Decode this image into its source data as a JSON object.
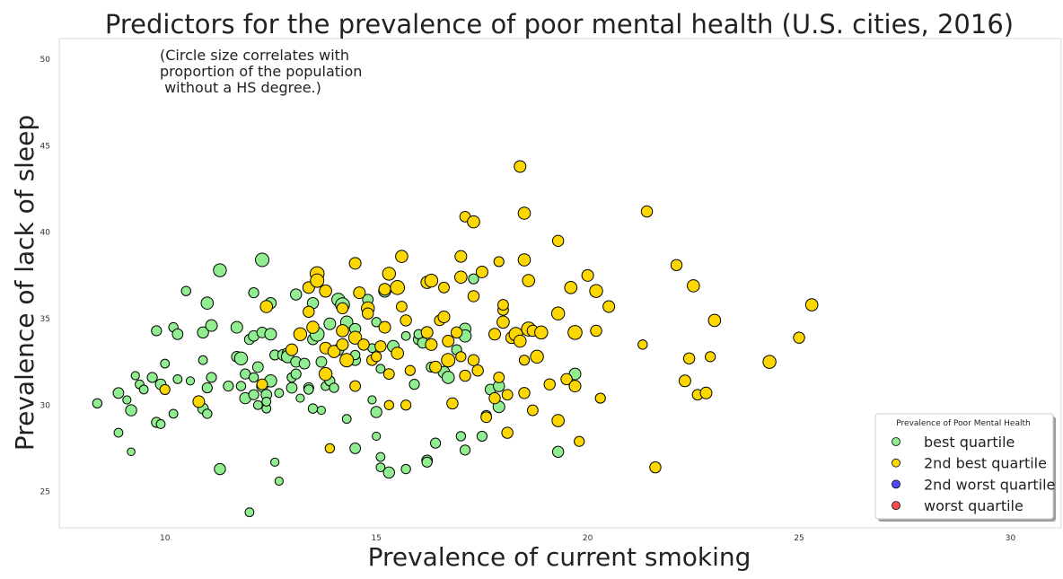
{
  "chart_data": {
    "type": "scatter",
    "title": "Predictors for the prevalence of poor mental health (U.S. cities, 2016)",
    "xlabel": "Prevalence of current smoking",
    "ylabel": "Prevalence of lack of sleep",
    "annotation": [
      "(Circle size correlates with",
      "proportion of the population",
      " without a HS degree.)"
    ],
    "xlim": [
      7.5,
      31.2
    ],
    "ylim": [
      22.9,
      51.2
    ],
    "xticks": [
      10,
      15,
      20,
      25,
      30
    ],
    "yticks": [
      25,
      30,
      35,
      40,
      45,
      50
    ],
    "grid": false,
    "legend": {
      "title": "Prevalence of Poor Mental Health",
      "position": "lower-right",
      "entries": [
        {
          "label": "best quartile",
          "color": "#90ee90"
        },
        {
          "label": "2nd best quartile",
          "color": "#ffd700"
        },
        {
          "label": "2nd worst quartile",
          "color": "#4b4bff"
        },
        {
          "label": "worst quartile",
          "color": "#ff4f4f"
        }
      ]
    },
    "series": [
      {
        "name": "best quartile",
        "color": "#90ee90",
        "points": [
          [
            8.4,
            30.1,
            7
          ],
          [
            8.9,
            30.7,
            9
          ],
          [
            8.9,
            28.4,
            6
          ],
          [
            9.2,
            29.7,
            10
          ],
          [
            9.2,
            27.3,
            4
          ],
          [
            9.3,
            31.7,
            5
          ],
          [
            9.4,
            31.2,
            6
          ],
          [
            9.5,
            30.9,
            6
          ],
          [
            9.7,
            31.6,
            8
          ],
          [
            9.8,
            29.0,
            8
          ],
          [
            9.8,
            34.3,
            8
          ],
          [
            9.9,
            28.9,
            6
          ],
          [
            9.9,
            31.2,
            9
          ],
          [
            10.0,
            32.4,
            6
          ],
          [
            10.2,
            29.5,
            6
          ],
          [
            10.2,
            34.5,
            7
          ],
          [
            10.3,
            34.1,
            9
          ],
          [
            10.3,
            31.5,
            6
          ],
          [
            10.5,
            36.6,
            7
          ],
          [
            10.6,
            31.4,
            5
          ],
          [
            10.8,
            30.2,
            7
          ],
          [
            10.9,
            29.8,
            9
          ],
          [
            10.9,
            32.6,
            6
          ],
          [
            10.9,
            34.2,
            10
          ],
          [
            11.0,
            29.5,
            7
          ],
          [
            11.0,
            35.9,
            12
          ],
          [
            11.0,
            31.0,
            8
          ],
          [
            11.1,
            34.6,
            11
          ],
          [
            11.1,
            31.6,
            8
          ],
          [
            11.3,
            37.8,
            13
          ],
          [
            11.3,
            26.3,
            10
          ],
          [
            11.5,
            31.1,
            8
          ],
          [
            11.7,
            34.5,
            11
          ],
          [
            11.7,
            32.8,
            9
          ],
          [
            11.8,
            32.7,
            13
          ],
          [
            11.8,
            31.1,
            7
          ],
          [
            11.9,
            30.4,
            10
          ],
          [
            11.9,
            31.8,
            8
          ],
          [
            12.0,
            23.8,
            6
          ],
          [
            12.0,
            33.8,
            8
          ],
          [
            12.1,
            34.0,
            9
          ],
          [
            12.1,
            36.5,
            8
          ],
          [
            12.1,
            30.6,
            8
          ],
          [
            12.1,
            31.6,
            7
          ],
          [
            12.2,
            30.0,
            6
          ],
          [
            12.2,
            32.2,
            9
          ],
          [
            12.3,
            31.1,
            10
          ],
          [
            12.3,
            38.4,
            14
          ],
          [
            12.3,
            34.2,
            9
          ],
          [
            12.4,
            29.8,
            6
          ],
          [
            12.4,
            30.6,
            9
          ],
          [
            12.5,
            34.1,
            11
          ],
          [
            12.5,
            35.9,
            10
          ],
          [
            12.5,
            31.4,
            12
          ],
          [
            12.6,
            32.9,
            8
          ],
          [
            12.6,
            26.7,
            5
          ],
          [
            12.7,
            30.7,
            6
          ],
          [
            12.7,
            25.6,
            5
          ],
          [
            12.8,
            32.9,
            10
          ],
          [
            12.9,
            33.0,
            9
          ],
          [
            12.9,
            32.8,
            12
          ],
          [
            13.0,
            31.0,
            9
          ],
          [
            13.0,
            31.6,
            7
          ],
          [
            13.1,
            36.4,
            10
          ],
          [
            13.1,
            32.5,
            9
          ],
          [
            13.1,
            31.8,
            8
          ],
          [
            13.3,
            32.4,
            9
          ],
          [
            13.4,
            31.0,
            8
          ],
          [
            13.4,
            30.9,
            7
          ],
          [
            13.5,
            35.9,
            10
          ],
          [
            13.5,
            33.8,
            9
          ],
          [
            13.5,
            29.8,
            7
          ],
          [
            13.6,
            34.1,
            15
          ],
          [
            13.7,
            29.7,
            5
          ],
          [
            13.7,
            32.5,
            9
          ],
          [
            13.8,
            31.1,
            6
          ],
          [
            13.9,
            31.4,
            8
          ],
          [
            13.9,
            34.7,
            11
          ],
          [
            14.0,
            31.0,
            7
          ],
          [
            14.1,
            36.1,
            13
          ],
          [
            14.1,
            33.2,
            10
          ],
          [
            14.2,
            35.8,
            15
          ],
          [
            14.3,
            34.8,
            12
          ],
          [
            14.3,
            29.2,
            6
          ],
          [
            14.5,
            34.4,
            10
          ],
          [
            14.5,
            32.6,
            9
          ],
          [
            14.5,
            27.5,
            9
          ],
          [
            14.8,
            36.1,
            9
          ],
          [
            14.9,
            30.3,
            5
          ],
          [
            15.0,
            28.2,
            5
          ],
          [
            15.0,
            34.8,
            7
          ],
          [
            15.0,
            29.6,
            10
          ],
          [
            15.1,
            26.4,
            6
          ],
          [
            15.1,
            27.0,
            6
          ],
          [
            15.1,
            32.1,
            6
          ],
          [
            15.2,
            36.6,
            12
          ],
          [
            15.3,
            26.1,
            10
          ],
          [
            15.4,
            33.4,
            11
          ],
          [
            15.7,
            26.3,
            7
          ],
          [
            15.9,
            31.2,
            8
          ],
          [
            16.0,
            33.8,
            9
          ],
          [
            16.0,
            34.1,
            7
          ],
          [
            16.1,
            33.6,
            9
          ],
          [
            16.2,
            26.8,
            9
          ],
          [
            16.2,
            26.7,
            8
          ],
          [
            16.3,
            32.2,
            8
          ],
          [
            16.4,
            27.8,
            8
          ],
          [
            16.6,
            31.9,
            11
          ],
          [
            16.7,
            31.6,
            12
          ],
          [
            16.9,
            33.2,
            8
          ],
          [
            17.0,
            28.2,
            7
          ],
          [
            17.1,
            27.4,
            8
          ],
          [
            17.1,
            34.4,
            11
          ],
          [
            17.1,
            34.0,
            12
          ],
          [
            17.3,
            37.3,
            8
          ],
          [
            17.5,
            28.2,
            8
          ],
          [
            17.6,
            29.4,
            8
          ],
          [
            17.7,
            30.9,
            9
          ],
          [
            17.9,
            31.1,
            10
          ],
          [
            17.9,
            29.9,
            11
          ],
          [
            19.3,
            27.3,
            10
          ],
          [
            19.7,
            31.8,
            11
          ],
          [
            14.5,
            32.9,
            7
          ],
          [
            14.9,
            33.3,
            6
          ],
          [
            12.4,
            30.2,
            6
          ],
          [
            13.2,
            30.4,
            5
          ],
          [
            15.7,
            34.0,
            6
          ],
          [
            9.1,
            30.3,
            5
          ]
        ]
      },
      {
        "name": "2nd best quartile",
        "color": "#ffd700",
        "points": [
          [
            10.0,
            30.9,
            8
          ],
          [
            10.8,
            30.2,
            11
          ],
          [
            12.3,
            31.2,
            9
          ],
          [
            12.4,
            35.7,
            12
          ],
          [
            13.0,
            33.2,
            11
          ],
          [
            13.2,
            34.1,
            13
          ],
          [
            13.4,
            35.4,
            10
          ],
          [
            13.4,
            36.8,
            11
          ],
          [
            13.5,
            34.5,
            12
          ],
          [
            13.6,
            37.6,
            15
          ],
          [
            13.6,
            37.2,
            14
          ],
          [
            13.8,
            33.3,
            11
          ],
          [
            13.8,
            36.6,
            12
          ],
          [
            13.8,
            31.8,
            13
          ],
          [
            13.9,
            27.5,
            7
          ],
          [
            14.0,
            33.1,
            12
          ],
          [
            14.2,
            33.5,
            11
          ],
          [
            14.2,
            35.6,
            10
          ],
          [
            14.2,
            34.3,
            12
          ],
          [
            14.3,
            32.6,
            14
          ],
          [
            14.5,
            33.9,
            13
          ],
          [
            14.5,
            38.2,
            11
          ],
          [
            14.5,
            31.1,
            9
          ],
          [
            14.6,
            36.5,
            11
          ],
          [
            14.7,
            33.5,
            10
          ],
          [
            14.8,
            35.6,
            13
          ],
          [
            14.8,
            35.3,
            10
          ],
          [
            14.9,
            32.6,
            9
          ],
          [
            15.0,
            32.8,
            8
          ],
          [
            15.1,
            33.4,
            10
          ],
          [
            15.2,
            36.7,
            11
          ],
          [
            15.2,
            34.5,
            11
          ],
          [
            15.3,
            31.8,
            9
          ],
          [
            15.3,
            30.0,
            7
          ],
          [
            15.3,
            37.6,
            13
          ],
          [
            15.5,
            33.0,
            12
          ],
          [
            15.5,
            36.8,
            15
          ],
          [
            15.6,
            35.7,
            9
          ],
          [
            15.6,
            38.6,
            12
          ],
          [
            15.7,
            34.9,
            10
          ],
          [
            15.7,
            30.0,
            8
          ],
          [
            15.8,
            32.0,
            8
          ],
          [
            16.2,
            37.1,
            12
          ],
          [
            16.2,
            34.2,
            11
          ],
          [
            16.3,
            37.2,
            13
          ],
          [
            16.3,
            33.5,
            11
          ],
          [
            16.4,
            32.2,
            11
          ],
          [
            16.5,
            34.9,
            9
          ],
          [
            16.6,
            35.1,
            11
          ],
          [
            16.6,
            36.8,
            9
          ],
          [
            16.7,
            32.6,
            14
          ],
          [
            16.7,
            33.7,
            11
          ],
          [
            16.8,
            30.1,
            10
          ],
          [
            16.9,
            34.2,
            10
          ],
          [
            17.0,
            32.8,
            8
          ],
          [
            17.0,
            37.4,
            12
          ],
          [
            17.0,
            38.6,
            11
          ],
          [
            17.1,
            40.9,
            9
          ],
          [
            17.1,
            31.7,
            10
          ],
          [
            17.3,
            36.3,
            10
          ],
          [
            17.3,
            40.6,
            12
          ],
          [
            17.3,
            32.6,
            10
          ],
          [
            17.4,
            32.0,
            10
          ],
          [
            17.5,
            37.7,
            11
          ],
          [
            17.6,
            29.3,
            9
          ],
          [
            17.8,
            34.1,
            11
          ],
          [
            17.8,
            30.4,
            10
          ],
          [
            17.9,
            38.3,
            8
          ],
          [
            17.9,
            31.6,
            9
          ],
          [
            18.0,
            35.5,
            9
          ],
          [
            18.0,
            35.8,
            9
          ],
          [
            18.0,
            34.8,
            12
          ],
          [
            18.1,
            28.4,
            10
          ],
          [
            18.1,
            30.6,
            9
          ],
          [
            18.2,
            33.9,
            11
          ],
          [
            18.3,
            34.1,
            14
          ],
          [
            18.4,
            43.8,
            11
          ],
          [
            18.4,
            33.7,
            12
          ],
          [
            18.5,
            38.4,
            12
          ],
          [
            18.5,
            41.1,
            12
          ],
          [
            18.5,
            32.6,
            8
          ],
          [
            18.5,
            30.7,
            10
          ],
          [
            18.6,
            34.4,
            15
          ],
          [
            18.6,
            37.2,
            12
          ],
          [
            18.7,
            34.3,
            10
          ],
          [
            18.7,
            29.7,
            9
          ],
          [
            18.8,
            32.8,
            13
          ],
          [
            18.9,
            34.2,
            13
          ],
          [
            19.1,
            31.2,
            10
          ],
          [
            19.3,
            39.5,
            10
          ],
          [
            19.3,
            35.3,
            13
          ],
          [
            19.3,
            29.1,
            12
          ],
          [
            19.5,
            31.5,
            10
          ],
          [
            19.6,
            36.8,
            12
          ],
          [
            19.7,
            31.1,
            11
          ],
          [
            19.7,
            34.2,
            15
          ],
          [
            19.8,
            27.9,
            8
          ],
          [
            20.0,
            37.5,
            11
          ],
          [
            20.2,
            36.6,
            13
          ],
          [
            20.3,
            30.4,
            8
          ],
          [
            20.2,
            34.3,
            10
          ],
          [
            20.5,
            35.7,
            11
          ],
          [
            21.3,
            33.5,
            7
          ],
          [
            21.4,
            41.2,
            10
          ],
          [
            21.6,
            26.4,
            10
          ],
          [
            22.1,
            38.1,
            10
          ],
          [
            22.3,
            31.4,
            11
          ],
          [
            22.4,
            32.7,
            10
          ],
          [
            22.5,
            36.9,
            12
          ],
          [
            22.6,
            30.6,
            9
          ],
          [
            22.8,
            30.7,
            11
          ],
          [
            22.9,
            32.8,
            8
          ],
          [
            23.0,
            34.9,
            12
          ],
          [
            24.3,
            32.5,
            13
          ],
          [
            25.0,
            33.9,
            10
          ],
          [
            25.3,
            35.8,
            12
          ]
        ]
      }
    ]
  }
}
